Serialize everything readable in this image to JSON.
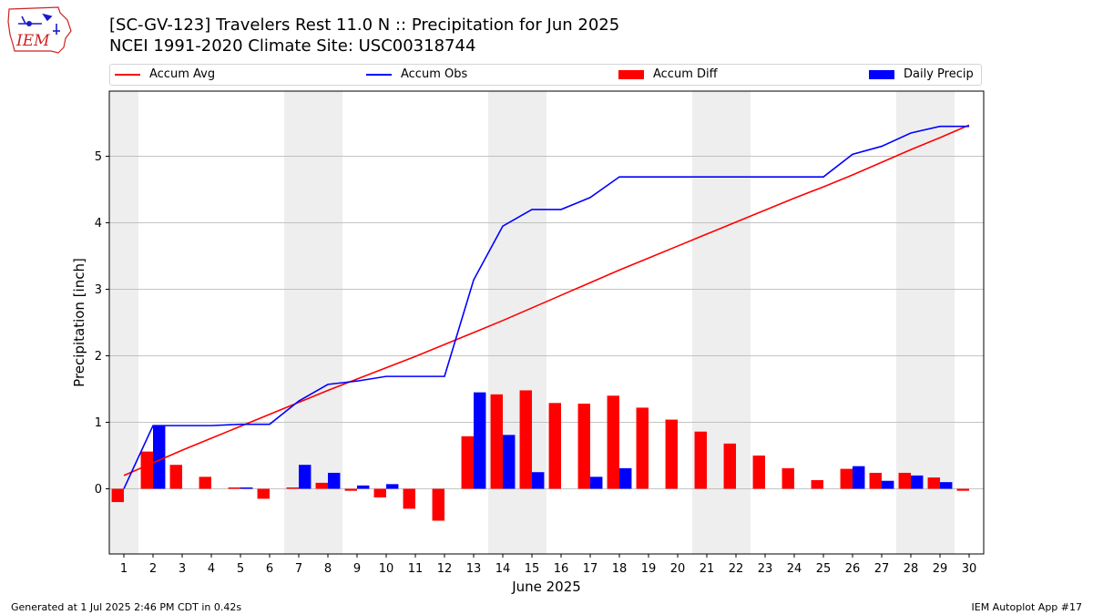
{
  "header": {
    "logo_text": "IEM",
    "title_line1": "[SC-GV-123] Travelers Rest 11.0 N :: Precipitation for Jun 2025",
    "title_line2": "NCEI 1991-2020 Climate Site: USC00318744"
  },
  "footer": {
    "generated": "Generated at 1 Jul 2025 2:46 PM CDT in 0.42s",
    "app": "IEM Autoplot App #17"
  },
  "colors": {
    "avg": "#ff0000",
    "obs": "#0000ff",
    "diff": "#ff0000",
    "daily": "#0000ff",
    "weekend_band": "#eeeeee",
    "grid": "#b0b0b0"
  },
  "chart_data": {
    "type": "bar",
    "xlabel": "June 2025",
    "ylabel": "Precipitation [inch]",
    "ylim": [
      -0.98,
      5.98
    ],
    "yticks": [
      0,
      1,
      2,
      3,
      4,
      5
    ],
    "xlim": [
      0.5,
      30.5
    ],
    "grid": "horizontal",
    "legend_placement": "top",
    "days": [
      1,
      2,
      3,
      4,
      5,
      6,
      7,
      8,
      9,
      10,
      11,
      12,
      13,
      14,
      15,
      16,
      17,
      18,
      19,
      20,
      21,
      22,
      23,
      24,
      25,
      26,
      27,
      28,
      29,
      30
    ],
    "weekend_bands": [
      [
        0.5,
        1.5
      ],
      [
        6.5,
        8.5
      ],
      [
        13.5,
        15.5
      ],
      [
        20.5,
        22.5
      ],
      [
        27.5,
        29.5
      ]
    ],
    "series": [
      {
        "name": "Accum Avg",
        "kind": "line",
        "values": [
          0.2,
          0.39,
          0.58,
          0.76,
          0.94,
          1.12,
          1.3,
          1.48,
          1.65,
          1.82,
          1.99,
          2.17,
          2.35,
          2.53,
          2.72,
          2.91,
          3.1,
          3.29,
          3.47,
          3.65,
          3.83,
          4.01,
          4.19,
          4.37,
          4.54,
          4.72,
          4.91,
          5.1,
          5.28,
          5.47
        ]
      },
      {
        "name": "Accum Obs",
        "kind": "line",
        "values": [
          0.0,
          0.95,
          0.95,
          0.95,
          0.97,
          0.97,
          1.32,
          1.57,
          1.62,
          1.69,
          1.69,
          1.69,
          3.14,
          3.95,
          4.2,
          4.2,
          4.38,
          4.69,
          4.69,
          4.69,
          4.69,
          4.69,
          4.69,
          4.69,
          4.69,
          5.03,
          5.15,
          5.35,
          5.45,
          5.45
        ]
      },
      {
        "name": "Accum Diff",
        "kind": "bar",
        "values": [
          -0.2,
          0.56,
          0.36,
          0.18,
          0.02,
          -0.15,
          0.02,
          0.09,
          -0.03,
          -0.13,
          -0.3,
          -0.48,
          0.79,
          1.42,
          1.48,
          1.29,
          1.28,
          1.4,
          1.22,
          1.04,
          0.86,
          0.68,
          0.5,
          0.31,
          0.13,
          0.3,
          0.24,
          0.24,
          0.17,
          -0.03
        ]
      },
      {
        "name": "Daily Precip",
        "kind": "bar",
        "values": [
          0,
          0.95,
          0,
          0,
          0.02,
          0,
          0.36,
          0.24,
          0.05,
          0.07,
          0,
          0,
          1.45,
          0.81,
          0.25,
          0,
          0.18,
          0.31,
          0,
          0,
          0,
          0,
          0,
          0,
          0,
          0.34,
          0.12,
          0.2,
          0.1,
          0
        ]
      }
    ]
  }
}
